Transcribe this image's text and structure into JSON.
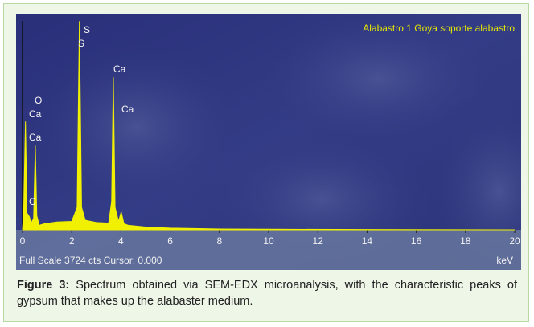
{
  "chart_data": {
    "type": "area",
    "title": "Alabastro 1 Goya soporte alabastro",
    "scale_info": "Full Scale 3724 cts Cursor: 0.000",
    "x_label": "keV",
    "color": "#f0f000",
    "x": [
      0,
      0.05,
      0.12,
      0.18,
      0.28,
      0.35,
      0.45,
      0.52,
      0.58,
      0.68,
      0.9,
      1.4,
      2.0,
      2.22,
      2.31,
      2.4,
      2.55,
      3.0,
      3.5,
      3.62,
      3.69,
      3.76,
      3.9,
      4.01,
      4.12,
      4.3,
      5,
      6,
      8,
      10,
      14,
      20
    ],
    "values": [
      0,
      400,
      1930,
      300,
      230,
      120,
      200,
      1500,
      250,
      80,
      110,
      140,
      150,
      400,
      3720,
      400,
      170,
      130,
      120,
      500,
      2720,
      400,
      150,
      320,
      110,
      80,
      50,
      30,
      15,
      10,
      5,
      0
    ],
    "xlim": [
      0,
      20
    ],
    "xticks": [
      0,
      2,
      4,
      6,
      8,
      10,
      12,
      14,
      16,
      18,
      20
    ],
    "ylim": [
      0,
      3724
    ],
    "annotations": [
      "C",
      "O",
      "Ca",
      "Ca",
      "S",
      "S",
      "Ca",
      "Ca"
    ]
  },
  "caption": {
    "label": "Figure 3:",
    "text": "Spectrum obtained via SEM-EDX microanalysis, with the characteristic peaks of gypsum that makes up the alabaster medium."
  }
}
